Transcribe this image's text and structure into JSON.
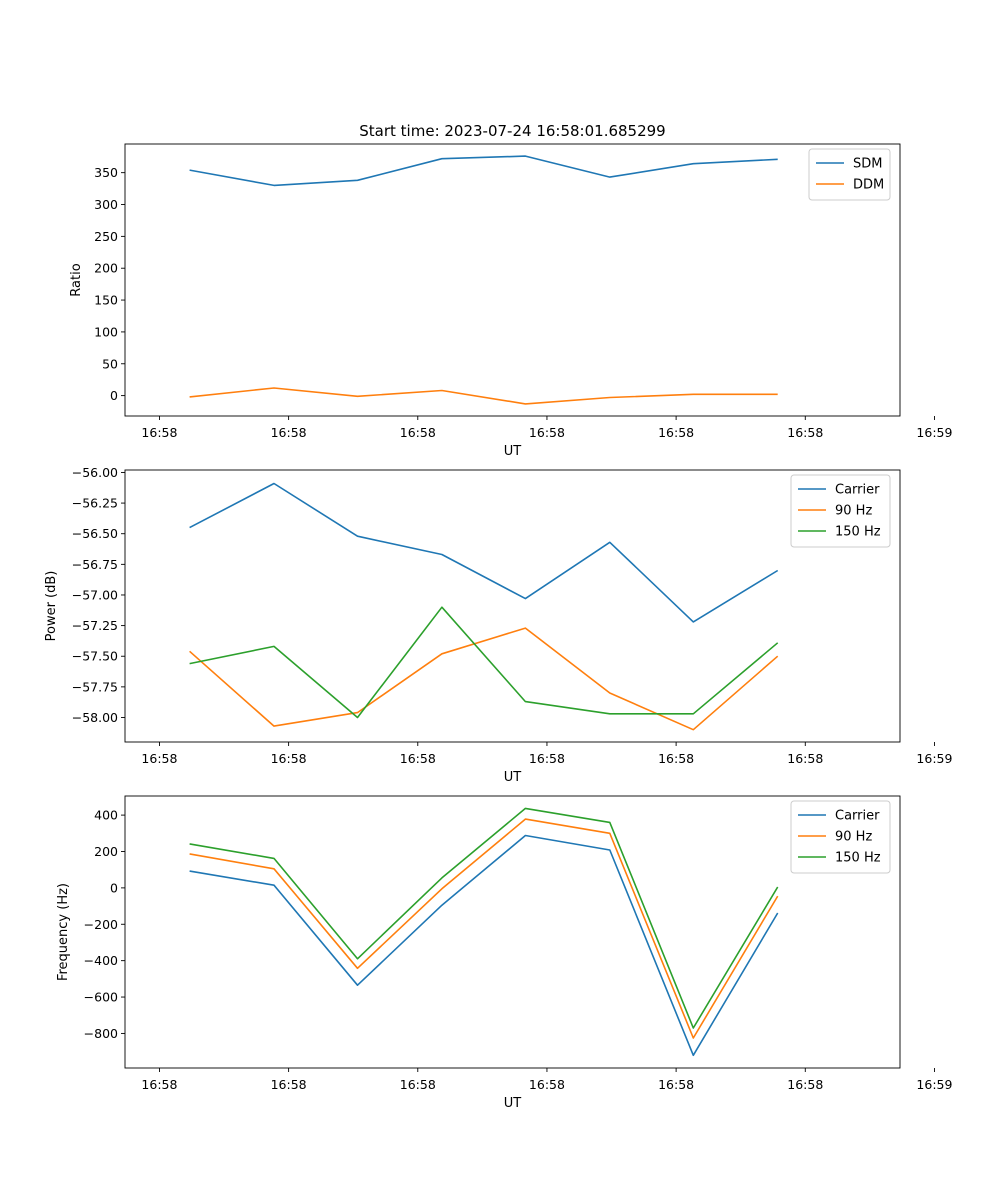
{
  "figure_title": "Start time: 2023-07-24 16:58:01.685299",
  "chart_data": [
    {
      "type": "line",
      "xlabel": "UT",
      "ylabel": "Ratio",
      "xlim": [
        -0.4,
        8.6
      ],
      "ylim": [
        -32,
        395
      ],
      "x": [
        0.35,
        1.33,
        2.3,
        3.28,
        4.25,
        5.23,
        6.2,
        7.18
      ],
      "xticks": [
        {
          "value": 0,
          "label": "16:58"
        },
        {
          "value": 1.5,
          "label": "16:58"
        },
        {
          "value": 3,
          "label": "16:58"
        },
        {
          "value": 4.5,
          "label": "16:58"
        },
        {
          "value": 6,
          "label": "16:58"
        },
        {
          "value": 7.5,
          "label": "16:58"
        },
        {
          "value": 9,
          "label": "16:59"
        }
      ],
      "yticks": [
        0,
        50,
        100,
        150,
        200,
        250,
        300,
        350
      ],
      "ytick_labels": [
        "0",
        "50",
        "100",
        "150",
        "200",
        "250",
        "300",
        "350"
      ],
      "legend_position": "top-right",
      "series": [
        {
          "name": "SDM",
          "color": "#1f77b4",
          "values": [
            354,
            330,
            338,
            372,
            376,
            343,
            364,
            371
          ]
        },
        {
          "name": "DDM",
          "color": "#ff7f0e",
          "values": [
            -2,
            12,
            -1,
            8,
            -13,
            -3,
            2,
            2
          ]
        }
      ]
    },
    {
      "type": "line",
      "xlabel": "UT",
      "ylabel": "Power (dB)",
      "xlim": [
        -0.4,
        8.6
      ],
      "ylim": [
        -58.2,
        -55.98
      ],
      "x": [
        0.35,
        1.33,
        2.3,
        3.28,
        4.25,
        5.23,
        6.2,
        7.18
      ],
      "xticks": [
        {
          "value": 0,
          "label": "16:58"
        },
        {
          "value": 1.5,
          "label": "16:58"
        },
        {
          "value": 3,
          "label": "16:58"
        },
        {
          "value": 4.5,
          "label": "16:58"
        },
        {
          "value": 6,
          "label": "16:58"
        },
        {
          "value": 7.5,
          "label": "16:58"
        },
        {
          "value": 9,
          "label": "16:59"
        }
      ],
      "yticks": [
        -58.0,
        -57.75,
        -57.5,
        -57.25,
        -57.0,
        -56.75,
        -56.5,
        -56.25,
        -56.0
      ],
      "ytick_labels": [
        "−58.00",
        "−57.75",
        "−57.50",
        "−57.25",
        "−57.00",
        "−56.75",
        "−56.50",
        "−56.25",
        "−56.00"
      ],
      "legend_position": "top-right",
      "series": [
        {
          "name": "Carrier",
          "color": "#1f77b4",
          "values": [
            -56.45,
            -56.09,
            -56.52,
            -56.67,
            -57.03,
            -56.57,
            -57.22,
            -56.8
          ]
        },
        {
          "name": "90 Hz",
          "color": "#ff7f0e",
          "values": [
            -57.46,
            -58.07,
            -57.96,
            -57.48,
            -57.27,
            -57.8,
            -58.1,
            -57.5
          ]
        },
        {
          "name": "150 Hz",
          "color": "#2ca02c",
          "values": [
            -57.56,
            -57.42,
            -58.0,
            -57.1,
            -57.87,
            -57.97,
            -57.97,
            -57.39
          ]
        }
      ]
    },
    {
      "type": "line",
      "xlabel": "UT",
      "ylabel": "Frequency (Hz)",
      "xlim": [
        -0.4,
        8.6
      ],
      "ylim": [
        -990,
        505
      ],
      "x": [
        0.35,
        1.33,
        2.3,
        3.28,
        4.25,
        5.23,
        6.2,
        7.18
      ],
      "xticks": [
        {
          "value": 0,
          "label": "16:58"
        },
        {
          "value": 1.5,
          "label": "16:58"
        },
        {
          "value": 3,
          "label": "16:58"
        },
        {
          "value": 4.5,
          "label": "16:58"
        },
        {
          "value": 6,
          "label": "16:58"
        },
        {
          "value": 7.5,
          "label": "16:58"
        },
        {
          "value": 9,
          "label": "16:59"
        }
      ],
      "yticks": [
        -800,
        -600,
        -400,
        -200,
        0,
        200,
        400
      ],
      "ytick_labels": [
        "−800",
        "−600",
        "−400",
        "−200",
        "0",
        "200",
        "400"
      ],
      "legend_position": "top-right",
      "series": [
        {
          "name": "Carrier",
          "color": "#1f77b4",
          "values": [
            92,
            15,
            -535,
            -95,
            288,
            208,
            -920,
            -138
          ]
        },
        {
          "name": "90 Hz",
          "color": "#ff7f0e",
          "values": [
            187,
            105,
            -442,
            -5,
            378,
            300,
            -825,
            -45
          ]
        },
        {
          "name": "150 Hz",
          "color": "#2ca02c",
          "values": [
            242,
            162,
            -390,
            55,
            437,
            360,
            -770,
            5
          ]
        }
      ]
    }
  ]
}
